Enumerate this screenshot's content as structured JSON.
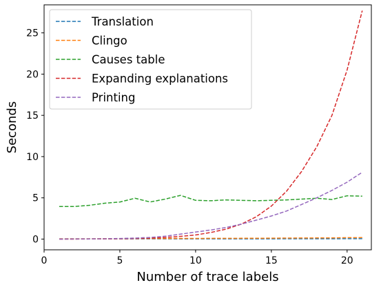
{
  "chart_data": {
    "type": "line",
    "xlabel": "Number of trace labels",
    "ylabel": "Seconds",
    "xlim": [
      0,
      21.6
    ],
    "ylim": [
      -1.3,
      28.4
    ],
    "xticks": [
      0,
      5,
      10,
      15,
      20
    ],
    "yticks": [
      0,
      5,
      10,
      15,
      20,
      25
    ],
    "grid": false,
    "legend_position": "top-left",
    "line_style": "dashed",
    "x": [
      1,
      2,
      3,
      4,
      5,
      6,
      7,
      8,
      9,
      10,
      11,
      12,
      13,
      14,
      15,
      16,
      17,
      18,
      19,
      20,
      21
    ],
    "series": [
      {
        "name": "Translation",
        "color": "#1f77b4",
        "values": [
          0.03,
          0.03,
          0.03,
          0.03,
          0.03,
          0.03,
          0.03,
          0.03,
          0.03,
          0.03,
          0.03,
          0.03,
          0.03,
          0.03,
          0.03,
          0.04,
          0.04,
          0.04,
          0.04,
          0.05,
          0.05
        ]
      },
      {
        "name": "Clingo",
        "color": "#ff7f0e",
        "values": [
          0.03,
          0.04,
          0.04,
          0.05,
          0.05,
          0.06,
          0.07,
          0.07,
          0.08,
          0.08,
          0.09,
          0.09,
          0.1,
          0.1,
          0.11,
          0.12,
          0.13,
          0.14,
          0.15,
          0.17,
          0.18
        ]
      },
      {
        "name": "Causes table",
        "color": "#2ca02c",
        "values": [
          3.95,
          3.95,
          4.1,
          4.35,
          4.5,
          4.95,
          4.5,
          4.85,
          5.3,
          4.7,
          4.65,
          4.75,
          4.7,
          4.65,
          4.7,
          4.75,
          4.85,
          4.95,
          4.8,
          5.25,
          5.2
        ]
      },
      {
        "name": "Expanding explanations",
        "color": "#d62728",
        "values": [
          0.0,
          0.0,
          0.01,
          0.02,
          0.04,
          0.07,
          0.12,
          0.2,
          0.33,
          0.5,
          0.8,
          1.2,
          1.8,
          2.7,
          4.0,
          5.8,
          8.2,
          11.2,
          15.0,
          20.5,
          27.7
        ]
      },
      {
        "name": "Printing",
        "color": "#9467bd",
        "values": [
          0.0,
          0.01,
          0.02,
          0.04,
          0.07,
          0.12,
          0.2,
          0.35,
          0.6,
          0.85,
          1.1,
          1.4,
          1.8,
          2.3,
          2.8,
          3.4,
          4.2,
          5.0,
          5.9,
          6.9,
          8.1
        ]
      }
    ]
  }
}
